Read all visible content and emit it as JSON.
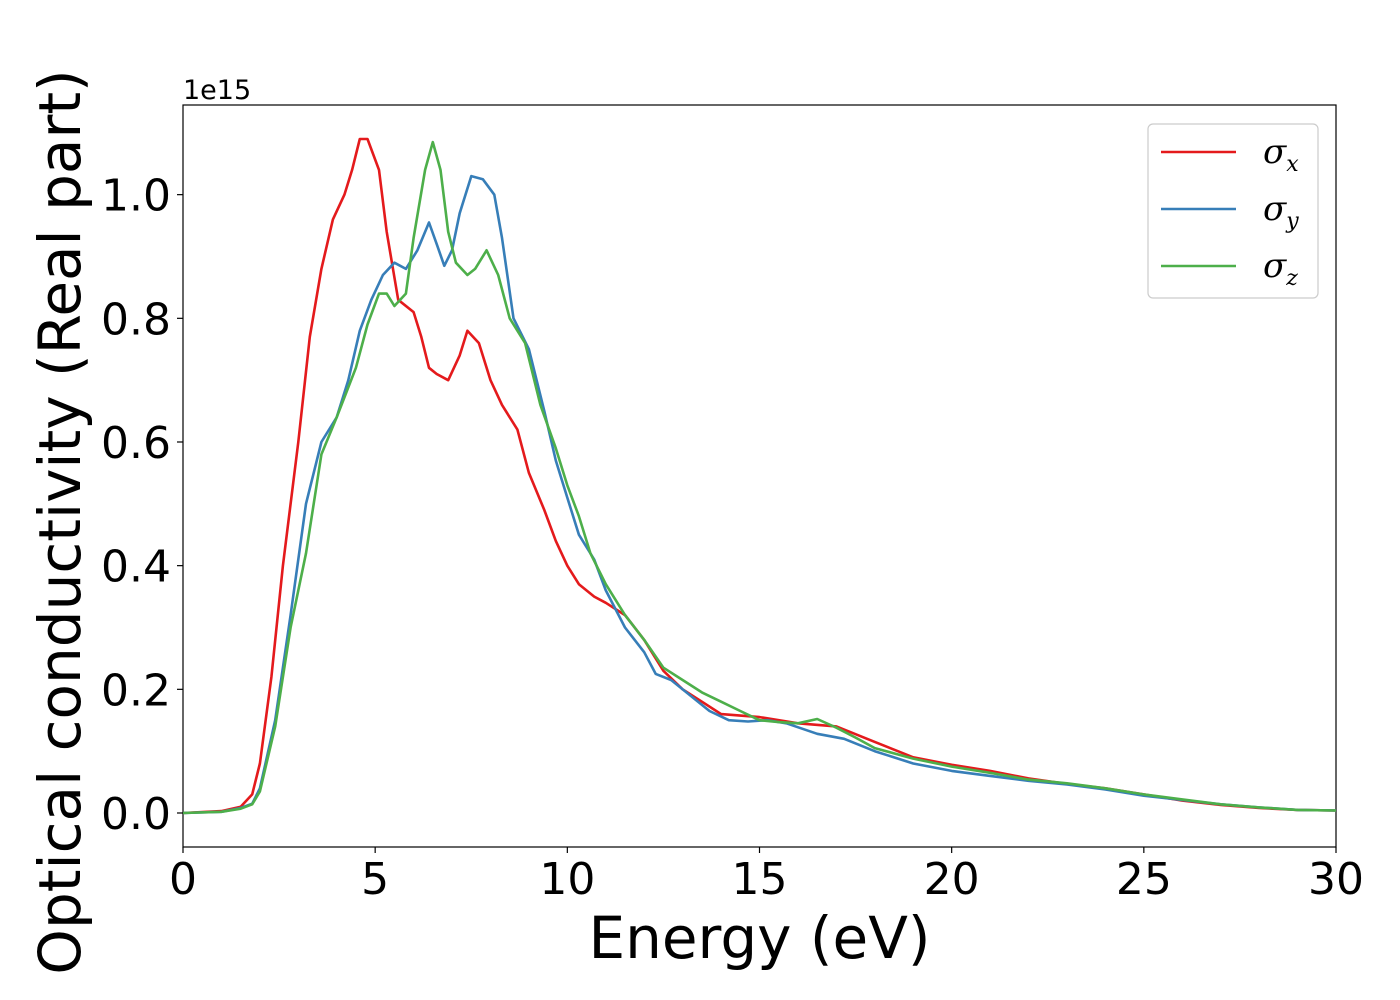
{
  "chart_data": {
    "type": "line",
    "xlabel": "Energy (eV)",
    "ylabel": "Optical conductivity (Real part)",
    "y_offset_text": "1e15",
    "xlim": [
      0,
      30
    ],
    "ylim": [
      -0.055,
      1.145
    ],
    "x_ticks": [
      0,
      5,
      10,
      15,
      20,
      25,
      30
    ],
    "x_tick_labels": [
      "0",
      "5",
      "10",
      "15",
      "20",
      "25",
      "30"
    ],
    "y_ticks": [
      0.0,
      0.2,
      0.4,
      0.6,
      0.8,
      1.0
    ],
    "y_tick_labels": [
      "0.0",
      "0.2",
      "0.4",
      "0.6",
      "0.8",
      "1.0"
    ],
    "grid": false,
    "legend_position": "top-right",
    "series": [
      {
        "name": "σx",
        "base": "σ",
        "sub": "x",
        "color": "#e41a1c",
        "points": [
          [
            0,
            0
          ],
          [
            1,
            0.003
          ],
          [
            1.5,
            0.01
          ],
          [
            1.8,
            0.03
          ],
          [
            2,
            0.08
          ],
          [
            2.3,
            0.22
          ],
          [
            2.6,
            0.4
          ],
          [
            3,
            0.6
          ],
          [
            3.3,
            0.77
          ],
          [
            3.6,
            0.88
          ],
          [
            3.9,
            0.96
          ],
          [
            4.2,
            1.0
          ],
          [
            4.4,
            1.04
          ],
          [
            4.6,
            1.09
          ],
          [
            4.8,
            1.09
          ],
          [
            5.1,
            1.04
          ],
          [
            5.3,
            0.94
          ],
          [
            5.6,
            0.83
          ],
          [
            6,
            0.81
          ],
          [
            6.2,
            0.77
          ],
          [
            6.4,
            0.72
          ],
          [
            6.6,
            0.71
          ],
          [
            6.9,
            0.7
          ],
          [
            7.2,
            0.74
          ],
          [
            7.4,
            0.78
          ],
          [
            7.7,
            0.76
          ],
          [
            8,
            0.7
          ],
          [
            8.3,
            0.66
          ],
          [
            8.7,
            0.62
          ],
          [
            9,
            0.55
          ],
          [
            9.4,
            0.49
          ],
          [
            9.7,
            0.44
          ],
          [
            10,
            0.4
          ],
          [
            10.3,
            0.37
          ],
          [
            10.7,
            0.35
          ],
          [
            11,
            0.34
          ],
          [
            11.5,
            0.32
          ],
          [
            12,
            0.28
          ],
          [
            12.5,
            0.23
          ],
          [
            13,
            0.2
          ],
          [
            13.5,
            0.18
          ],
          [
            14,
            0.16
          ],
          [
            15,
            0.155
          ],
          [
            16,
            0.145
          ],
          [
            17,
            0.14
          ],
          [
            18,
            0.115
          ],
          [
            19,
            0.09
          ],
          [
            20,
            0.078
          ],
          [
            21,
            0.068
          ],
          [
            22,
            0.056
          ],
          [
            23,
            0.047
          ],
          [
            24,
            0.04
          ],
          [
            25,
            0.03
          ],
          [
            26,
            0.02
          ],
          [
            27,
            0.013
          ],
          [
            28,
            0.008
          ],
          [
            29,
            0.005
          ],
          [
            30,
            0.004
          ]
        ]
      },
      {
        "name": "σy",
        "base": "σ",
        "sub": "y",
        "color": "#377eb8",
        "points": [
          [
            0,
            0
          ],
          [
            1,
            0.002
          ],
          [
            1.5,
            0.008
          ],
          [
            1.8,
            0.015
          ],
          [
            2,
            0.04
          ],
          [
            2.4,
            0.15
          ],
          [
            2.8,
            0.32
          ],
          [
            3.2,
            0.5
          ],
          [
            3.6,
            0.6
          ],
          [
            4,
            0.64
          ],
          [
            4.3,
            0.7
          ],
          [
            4.6,
            0.78
          ],
          [
            4.9,
            0.83
          ],
          [
            5.2,
            0.87
          ],
          [
            5.5,
            0.89
          ],
          [
            5.8,
            0.88
          ],
          [
            6.1,
            0.91
          ],
          [
            6.4,
            0.955
          ],
          [
            6.6,
            0.92
          ],
          [
            6.8,
            0.885
          ],
          [
            7,
            0.91
          ],
          [
            7.2,
            0.97
          ],
          [
            7.5,
            1.03
          ],
          [
            7.8,
            1.025
          ],
          [
            8.1,
            1.0
          ],
          [
            8.3,
            0.93
          ],
          [
            8.6,
            0.8
          ],
          [
            9,
            0.75
          ],
          [
            9.4,
            0.65
          ],
          [
            9.7,
            0.57
          ],
          [
            10,
            0.51
          ],
          [
            10.3,
            0.45
          ],
          [
            10.7,
            0.41
          ],
          [
            11,
            0.36
          ],
          [
            11.5,
            0.3
          ],
          [
            12,
            0.26
          ],
          [
            12.3,
            0.225
          ],
          [
            12.7,
            0.215
          ],
          [
            13.2,
            0.19
          ],
          [
            13.7,
            0.165
          ],
          [
            14.2,
            0.15
          ],
          [
            14.7,
            0.148
          ],
          [
            15.2,
            0.15
          ],
          [
            15.7,
            0.145
          ],
          [
            16.5,
            0.128
          ],
          [
            17.2,
            0.12
          ],
          [
            18,
            0.1
          ],
          [
            19,
            0.08
          ],
          [
            20,
            0.068
          ],
          [
            21,
            0.06
          ],
          [
            22,
            0.052
          ],
          [
            23,
            0.046
          ],
          [
            24,
            0.038
          ],
          [
            25,
            0.028
          ],
          [
            26,
            0.021
          ],
          [
            27,
            0.014
          ],
          [
            28,
            0.009
          ],
          [
            29,
            0.005
          ],
          [
            30,
            0.004
          ]
        ]
      },
      {
        "name": "σz",
        "base": "σ",
        "sub": "z",
        "color": "#4daf4a",
        "points": [
          [
            0,
            0
          ],
          [
            1,
            0.002
          ],
          [
            1.5,
            0.007
          ],
          [
            1.8,
            0.014
          ],
          [
            2,
            0.035
          ],
          [
            2.4,
            0.14
          ],
          [
            2.8,
            0.3
          ],
          [
            3.2,
            0.42
          ],
          [
            3.6,
            0.58
          ],
          [
            4,
            0.64
          ],
          [
            4.5,
            0.72
          ],
          [
            4.8,
            0.79
          ],
          [
            5.1,
            0.84
          ],
          [
            5.3,
            0.84
          ],
          [
            5.5,
            0.82
          ],
          [
            5.8,
            0.84
          ],
          [
            6,
            0.93
          ],
          [
            6.3,
            1.04
          ],
          [
            6.5,
            1.085
          ],
          [
            6.7,
            1.04
          ],
          [
            6.9,
            0.94
          ],
          [
            7.1,
            0.89
          ],
          [
            7.4,
            0.87
          ],
          [
            7.6,
            0.88
          ],
          [
            7.9,
            0.91
          ],
          [
            8.2,
            0.87
          ],
          [
            8.5,
            0.8
          ],
          [
            8.9,
            0.76
          ],
          [
            9.3,
            0.66
          ],
          [
            9.7,
            0.59
          ],
          [
            10,
            0.53
          ],
          [
            10.3,
            0.48
          ],
          [
            10.6,
            0.42
          ],
          [
            11,
            0.37
          ],
          [
            11.5,
            0.32
          ],
          [
            12,
            0.28
          ],
          [
            12.5,
            0.235
          ],
          [
            13,
            0.215
          ],
          [
            13.5,
            0.195
          ],
          [
            14,
            0.18
          ],
          [
            14.5,
            0.165
          ],
          [
            15,
            0.15
          ],
          [
            15.5,
            0.147
          ],
          [
            16,
            0.145
          ],
          [
            16.5,
            0.152
          ],
          [
            17,
            0.138
          ],
          [
            17.5,
            0.122
          ],
          [
            18,
            0.105
          ],
          [
            19,
            0.088
          ],
          [
            20,
            0.075
          ],
          [
            21,
            0.065
          ],
          [
            22,
            0.054
          ],
          [
            23,
            0.048
          ],
          [
            24,
            0.04
          ],
          [
            25,
            0.03
          ],
          [
            26,
            0.022
          ],
          [
            27,
            0.014
          ],
          [
            28,
            0.009
          ],
          [
            29,
            0.005
          ],
          [
            30,
            0.004
          ]
        ]
      }
    ]
  }
}
